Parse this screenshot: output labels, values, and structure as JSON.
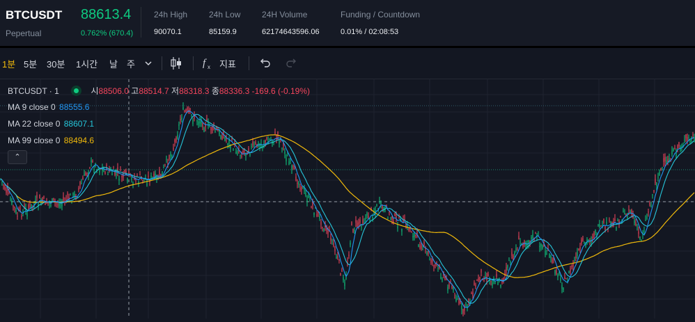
{
  "ticker": {
    "symbol": "BTCUSDT",
    "type": "Pepertual",
    "last_price": "88613.4",
    "change": "0.762% (670.4)",
    "stats": [
      {
        "label": "24h High",
        "value": "90070.1"
      },
      {
        "label": "24h Low",
        "value": "85159.9"
      },
      {
        "label": "24H Volume",
        "value": "62174643596.06"
      },
      {
        "label": "Funding / Countdown",
        "value": "0.01% / 02:08:53"
      }
    ]
  },
  "toolbar": {
    "timeframes": [
      "1분",
      "5분",
      "30분",
      "1시간",
      "날",
      "주"
    ],
    "active_timeframe": "1분",
    "indicators_label": "지표"
  },
  "legend": {
    "symbol": "BTCUSDT · 1",
    "open_label": "시",
    "open": "88506.0",
    "high_label": "고",
    "high": "88514.7",
    "low_label": "저",
    "low": "88318.3",
    "close_label": "종",
    "close": "88336.3",
    "change": "-169.6 (-0.19%)",
    "ma": [
      {
        "label": "MA 9 close 0",
        "value": "88555.6",
        "color": "#2196f3"
      },
      {
        "label": "MA 22 close 0",
        "value": "88607.1",
        "color": "#26c6da"
      },
      {
        "label": "MA 99 close 0",
        "value": "88494.6",
        "color": "#f0b90b"
      }
    ]
  },
  "colors": {
    "up": "#0ecb81",
    "down": "#f6465d",
    "accent": "#f0b90b",
    "background": "#131722"
  },
  "chart_data": {
    "type": "candlestick",
    "interval": "1m",
    "series": [
      {
        "name": "MA 9 close 0",
        "color": "#2196f3"
      },
      {
        "name": "MA 22 close 0",
        "color": "#26c6da"
      },
      {
        "name": "MA 99 close 0",
        "color": "#f0b90b"
      }
    ],
    "grid": true
  }
}
